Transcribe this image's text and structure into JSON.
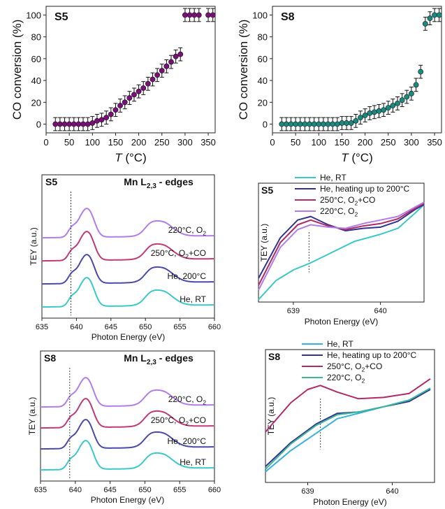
{
  "chart_data": [
    {
      "type": "scatter",
      "title": "S5",
      "xlabel": "T",
      "xlabel_unit": "(°C)",
      "ylabel": "CO conversion (%)",
      "xlim": [
        0,
        365
      ],
      "ylim": [
        -8,
        108
      ],
      "xticks": [
        "0",
        "50",
        "100",
        "150",
        "200",
        "250",
        "300",
        "350"
      ],
      "yticks": [
        "0",
        "20",
        "40",
        "60",
        "80",
        "100"
      ],
      "color": "#7a0f7a",
      "error_bar": 6,
      "series": [
        {
          "x": [
            20,
            30,
            40,
            50,
            60,
            70,
            80,
            90,
            100,
            110,
            120,
            130,
            140,
            150,
            160,
            170,
            180,
            190,
            200,
            210,
            220,
            230,
            240,
            250,
            260,
            270,
            280,
            290,
            300,
            310,
            320,
            330,
            350,
            360
          ],
          "y": [
            0,
            0,
            0,
            0,
            0,
            0,
            0,
            0,
            1,
            3,
            4,
            6,
            9,
            13,
            17,
            20,
            24,
            27,
            30,
            33,
            37,
            41,
            45,
            49,
            53,
            57,
            62,
            64,
            100,
            100,
            100,
            100,
            100,
            100
          ]
        }
      ]
    },
    {
      "type": "scatter",
      "title": "S8",
      "xlabel": "T",
      "xlabel_unit": "(°C)",
      "ylabel": "CO conversion (%)",
      "xlim": [
        0,
        365
      ],
      "ylim": [
        -8,
        108
      ],
      "xticks": [
        "0",
        "50",
        "100",
        "150",
        "200",
        "250",
        "300",
        "350"
      ],
      "yticks": [
        "0",
        "20",
        "40",
        "60",
        "80",
        "100"
      ],
      "color": "#1a8a80",
      "error_bar": 6,
      "series": [
        {
          "x": [
            20,
            30,
            40,
            50,
            60,
            70,
            80,
            90,
            100,
            110,
            120,
            130,
            140,
            150,
            160,
            170,
            180,
            190,
            200,
            210,
            220,
            230,
            240,
            250,
            260,
            270,
            280,
            290,
            300,
            310,
            320,
            330,
            340,
            350,
            360
          ],
          "y": [
            0,
            0,
            0,
            0,
            0,
            0,
            0,
            0,
            0,
            0,
            0,
            0,
            0,
            1,
            1,
            1,
            3,
            6,
            8,
            10,
            11,
            12,
            13,
            15,
            17,
            19,
            22,
            25,
            28,
            36,
            48,
            92,
            97,
            100,
            100
          ]
        }
      ]
    },
    {
      "type": "line",
      "title": "S5",
      "heading": "Mn L",
      "heading_sub": "2,3",
      "heading_rest": " - edges",
      "xlabel": "Photon Energy (eV)",
      "ylabel": "TEY (a.u.)",
      "xlim": [
        635,
        660
      ],
      "xticks": [
        "635",
        "640",
        "645",
        "650",
        "655",
        "660"
      ],
      "dashed_x": 639.2,
      "series": [
        {
          "name": "He, RT",
          "color": "#3cc8c8",
          "offset": 0
        },
        {
          "name": "He, 200°C",
          "color": "#4a4aa8",
          "offset": 1
        },
        {
          "name": "250°C, O2+CO",
          "color": "#c03a78",
          "offset": 2
        },
        {
          "name": "220°C, O2",
          "color": "#b07ee6",
          "offset": 3
        }
      ],
      "labels": [
        {
          "text": "220°C, O",
          "sub": "2",
          "rest": ""
        },
        {
          "text": "250°C, O",
          "sub": "2",
          "rest": "+CO"
        },
        {
          "text": "He, 200°C",
          "sub": "",
          "rest": ""
        },
        {
          "text": "He, RT",
          "sub": "",
          "rest": ""
        }
      ]
    },
    {
      "type": "line",
      "title": "S5",
      "xlabel": "Photon Energy (eV)",
      "ylabel": "TEY (a.u.)",
      "xlim": [
        638.6,
        640.5
      ],
      "xticks": [
        "639",
        "640"
      ],
      "dashed_x": 639.18,
      "legend": [
        {
          "text": "He, RT",
          "sub": "",
          "rest": "",
          "color": "#3cc8c8"
        },
        {
          "text": "He, heating up to 200°C",
          "sub": "",
          "rest": "",
          "color": "#33338f"
        },
        {
          "text": "250°C, O",
          "sub": "2",
          "rest": "+CO",
          "color": "#b02a6a"
        },
        {
          "text": "220°C, O",
          "sub": "2",
          "rest": "",
          "color": "#b07ee6"
        }
      ]
    },
    {
      "type": "line",
      "title": "S8",
      "heading": "Mn L",
      "heading_sub": "2,3",
      "heading_rest": " - edges",
      "xlabel": "Photon Energy (eV)",
      "ylabel": "TEY (a.u.)",
      "xlim": [
        635,
        660
      ],
      "xticks": [
        "635",
        "640",
        "645",
        "650",
        "655",
        "660"
      ],
      "dashed_x": 639.2,
      "series": [
        {
          "name": "He, RT",
          "color": "#3cc8c8",
          "offset": 0
        },
        {
          "name": "He, 200°C",
          "color": "#4a4aa8",
          "offset": 1
        },
        {
          "name": "250°C, O2+CO",
          "color": "#c03a78",
          "offset": 2
        },
        {
          "name": "220°C, O2",
          "color": "#b07ee6",
          "offset": 3
        }
      ],
      "labels": [
        {
          "text": "220°C, O",
          "sub": "2",
          "rest": ""
        },
        {
          "text": "250°C, O",
          "sub": "2",
          "rest": "+CO"
        },
        {
          "text": "He, 200°C",
          "sub": "",
          "rest": ""
        },
        {
          "text": "He, RT",
          "sub": "",
          "rest": ""
        }
      ]
    },
    {
      "type": "line",
      "title": "S8",
      "xlabel": "Photon Energy (eV)",
      "ylabel": "TEY (a.u.)",
      "xlim": [
        638.5,
        640.5
      ],
      "xticks": [
        "639",
        "640"
      ],
      "dashed_x": 639.15,
      "legend": [
        {
          "text": "He, RT",
          "sub": "",
          "rest": "",
          "color": "#3ab0d8"
        },
        {
          "text": "He, heating up to 200°C",
          "sub": "",
          "rest": "",
          "color": "#33338f"
        },
        {
          "text": "250°C, O",
          "sub": "2",
          "rest": "+CO",
          "color": "#b02a6a"
        },
        {
          "text": "220°C, O",
          "sub": "2",
          "rest": "",
          "color": "#3cb89a"
        }
      ]
    }
  ]
}
